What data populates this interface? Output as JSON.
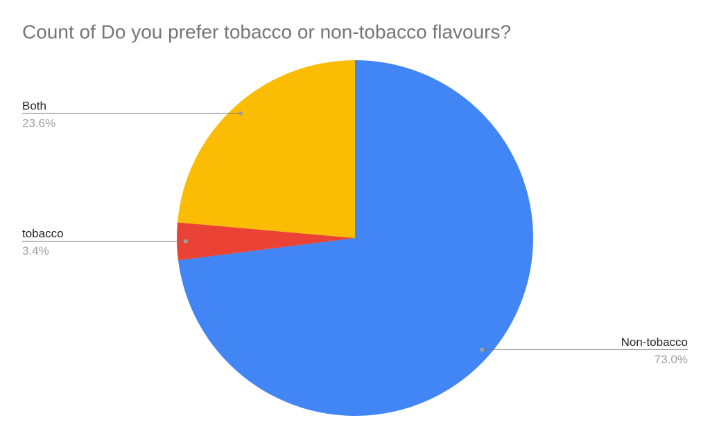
{
  "chart_data": {
    "type": "pie",
    "title": "Count of Do you prefer tobacco or non-tobacco flavours?",
    "categories": [
      "Non-tobacco",
      "tobacco",
      "Both"
    ],
    "values": [
      73.0,
      3.4,
      23.6
    ],
    "value_labels": [
      "73.0%",
      "3.4%",
      "23.6%"
    ],
    "colors": [
      "#4285f4",
      "#ea4335",
      "#fbbc04"
    ]
  }
}
